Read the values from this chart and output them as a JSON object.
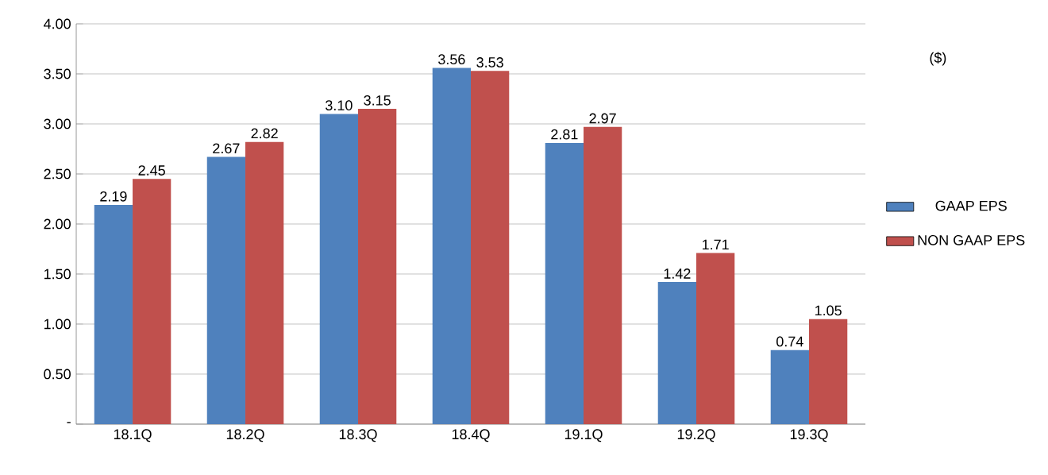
{
  "chart_data": {
    "type": "bar",
    "categories": [
      "18.1Q",
      "18.2Q",
      "18.3Q",
      "18.4Q",
      "19.1Q",
      "19.2Q",
      "19.3Q"
    ],
    "series": [
      {
        "name": "GAAP EPS",
        "color": "#4f81bd",
        "values": [
          2.19,
          2.67,
          3.1,
          3.56,
          2.81,
          1.42,
          0.74
        ],
        "value_labels": [
          "2.19",
          "2.67",
          "3.10",
          "3.56",
          "2.81",
          "1.42",
          "0.74"
        ]
      },
      {
        "name": "NON GAAP EPS",
        "color": "#c0504d",
        "values": [
          2.45,
          2.82,
          3.15,
          3.53,
          2.97,
          1.71,
          1.05
        ],
        "value_labels": [
          "2.45",
          "2.82",
          "3.15",
          "3.53",
          "2.97",
          "1.71",
          "1.05"
        ]
      }
    ],
    "ylim": [
      0,
      4
    ],
    "yticks": [
      {
        "value": 0,
        "label": "-"
      },
      {
        "value": 0.5,
        "label": "0.50"
      },
      {
        "value": 1,
        "label": "1.00"
      },
      {
        "value": 1.5,
        "label": "1.50"
      },
      {
        "value": 2,
        "label": "2.00"
      },
      {
        "value": 2.5,
        "label": "2.50"
      },
      {
        "value": 3,
        "label": "3.00"
      },
      {
        "value": 3.5,
        "label": "3.50"
      },
      {
        "value": 4,
        "label": "4.00"
      }
    ],
    "grid": "y",
    "legend": "right",
    "annotations": [
      "($)"
    ]
  }
}
